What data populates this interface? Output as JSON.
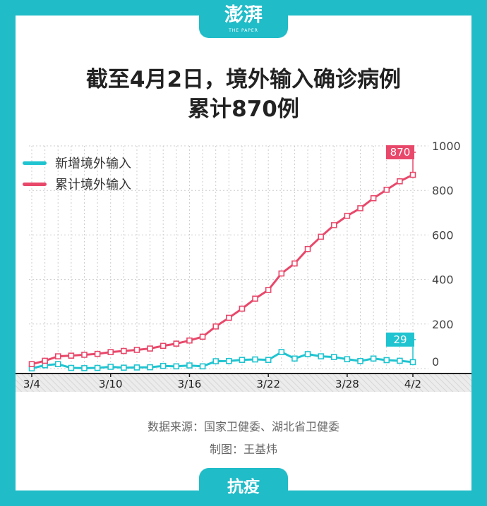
{
  "header": {
    "logo": "澎湃",
    "logo_sub": "THE PAPER"
  },
  "footer": {
    "tag": "抗疫",
    "source": "数据来源：国家卫健委、湖北省卫健委",
    "credit": "制图：王基炜"
  },
  "colors": {
    "background": "#20bcc8",
    "new_series": "#20c4d0",
    "cumulative_series": "#e8486a",
    "grid": "#cccccc",
    "axis_band": "#e4e4e4"
  },
  "chart_data": {
    "type": "line",
    "title": [
      "截至4月2日，境外输入确诊病例",
      "累计870例"
    ],
    "x": [
      "3/4",
      "3/5",
      "3/6",
      "3/7",
      "3/8",
      "3/9",
      "3/10",
      "3/11",
      "3/12",
      "3/13",
      "3/14",
      "3/15",
      "3/16",
      "3/17",
      "3/18",
      "3/19",
      "3/20",
      "3/21",
      "3/22",
      "3/23",
      "3/24",
      "3/25",
      "3/26",
      "3/27",
      "3/28",
      "3/29",
      "3/30",
      "3/31",
      "4/1",
      "4/2"
    ],
    "x_tick_labels": [
      "3/4",
      "3/10",
      "3/16",
      "3/22",
      "3/28",
      "4/2"
    ],
    "y_ticks": [
      0,
      200,
      400,
      600,
      800,
      1000
    ],
    "ylim": [
      0,
      1000
    ],
    "legend_position": "top-left",
    "grid": true,
    "series": [
      {
        "name": "新增境外输入",
        "values": [
          1,
          15,
          20,
          3,
          2,
          3,
          8,
          4,
          5,
          6,
          12,
          10,
          14,
          10,
          33,
          34,
          39,
          41,
          39,
          74,
          45,
          65,
          55,
          52,
          42,
          34,
          45,
          38,
          35,
          29
        ]
      },
      {
        "name": "累计境外输入",
        "values": [
          20,
          35,
          55,
          58,
          62,
          66,
          74,
          79,
          84,
          90,
          102,
          112,
          126,
          143,
          189,
          228,
          269,
          314,
          353,
          427,
          472,
          537,
          592,
          644,
          686,
          720,
          765,
          803,
          841,
          870
        ]
      }
    ],
    "callouts": [
      {
        "series": 1,
        "index": 29,
        "label": "870"
      },
      {
        "series": 0,
        "index": 29,
        "label": "29"
      }
    ]
  }
}
